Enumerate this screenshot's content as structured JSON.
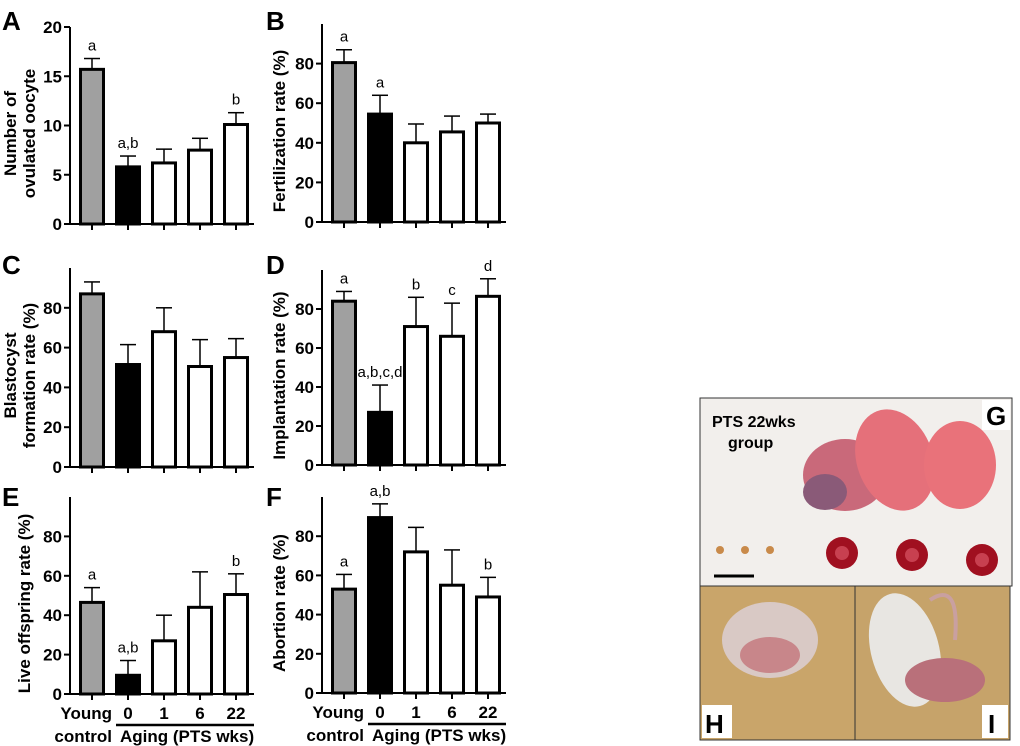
{
  "chart_data": [
    {
      "panel": "A",
      "type": "bar",
      "ylabel": [
        "Number of",
        "ovulated oocyte"
      ],
      "ylim": [
        0,
        20
      ],
      "yticks": [
        0,
        5,
        10,
        15,
        20
      ],
      "categories": [
        "Young control",
        "0",
        "1",
        "6",
        "22"
      ],
      "values": [
        15.7,
        5.8,
        6.2,
        7.5,
        10.1
      ],
      "error_top": [
        16.8,
        6.9,
        7.6,
        8.7,
        11.3
      ],
      "annotations": [
        "a",
        "a,b",
        "",
        "",
        "b"
      ]
    },
    {
      "panel": "B",
      "type": "bar",
      "ylabel": [
        "Fertilization rate (%)"
      ],
      "ylim": [
        0,
        100
      ],
      "yticks": [
        0,
        20,
        40,
        60,
        80
      ],
      "categories": [
        "Young control",
        "0",
        "1",
        "6",
        "22"
      ],
      "values": [
        80.5,
        54.5,
        40,
        45.5,
        50
      ],
      "error_top": [
        87,
        64,
        49.5,
        53.5,
        54.5
      ],
      "annotations": [
        "a",
        "a",
        "",
        "",
        ""
      ]
    },
    {
      "panel": "C",
      "type": "bar",
      "ylabel": [
        "Blastocyst",
        "formation rate (%)"
      ],
      "ylim": [
        0,
        100
      ],
      "yticks": [
        0,
        20,
        40,
        60,
        80
      ],
      "categories": [
        "Young control",
        "0",
        "1",
        "6",
        "22"
      ],
      "values": [
        87,
        51.5,
        68,
        50.5,
        55
      ],
      "error_top": [
        93,
        61.5,
        80,
        64,
        64.5
      ],
      "annotations": [
        "",
        "",
        "",
        "",
        ""
      ]
    },
    {
      "panel": "D",
      "type": "bar",
      "ylabel": [
        "Implantation rate (%)"
      ],
      "ylim": [
        0,
        100
      ],
      "yticks": [
        0,
        20,
        40,
        60,
        80
      ],
      "categories": [
        "Young control",
        "0",
        "1",
        "6",
        "22"
      ],
      "values": [
        84,
        27,
        71,
        66,
        86.5
      ],
      "error_top": [
        89,
        41,
        86,
        83,
        95.5
      ],
      "annotations": [
        "a",
        "a,b,c,d",
        "b",
        "c",
        "d"
      ]
    },
    {
      "panel": "E",
      "type": "bar",
      "ylabel": [
        "Live offspring rate (%)"
      ],
      "ylim": [
        0,
        100
      ],
      "yticks": [
        0,
        20,
        40,
        60,
        80
      ],
      "categories": [
        "Young control",
        "0",
        "1",
        "6",
        "22"
      ],
      "values": [
        46.5,
        9.5,
        27,
        44,
        50.5
      ],
      "error_top": [
        54,
        17,
        40,
        62,
        61
      ],
      "annotations": [
        "a",
        "a,b",
        "",
        "",
        "b"
      ],
      "xlabels": {
        "young": [
          "Young",
          "control"
        ],
        "aging": [
          "0",
          "1",
          "6",
          "22"
        ],
        "group": "Aging (PTS wks)"
      }
    },
    {
      "panel": "F",
      "type": "bar",
      "ylabel": [
        "Abortion rate (%)"
      ],
      "ylim": [
        0,
        100
      ],
      "yticks": [
        0,
        20,
        40,
        60,
        80
      ],
      "categories": [
        "Young control",
        "0",
        "1",
        "6",
        "22"
      ],
      "values": [
        53,
        89.5,
        72,
        55,
        49
      ],
      "error_top": [
        60.5,
        96.5,
        84.5,
        73,
        59
      ],
      "annotations": [
        "a",
        "a,b",
        "",
        "",
        "b"
      ],
      "xlabels": {
        "young": [
          "Young",
          "control"
        ],
        "aging": [
          "0",
          "1",
          "6",
          "22"
        ],
        "group": "Aging (PTS wks)"
      }
    }
  ],
  "colors": {
    "young": "#a0a0a0",
    "aging0": "#000000",
    "aging": "#ffffff"
  },
  "photos": {
    "G": {
      "label": "G",
      "text": [
        "PTS 22wks",
        "group"
      ]
    },
    "H": {
      "label": "H"
    },
    "I": {
      "label": "I"
    }
  }
}
